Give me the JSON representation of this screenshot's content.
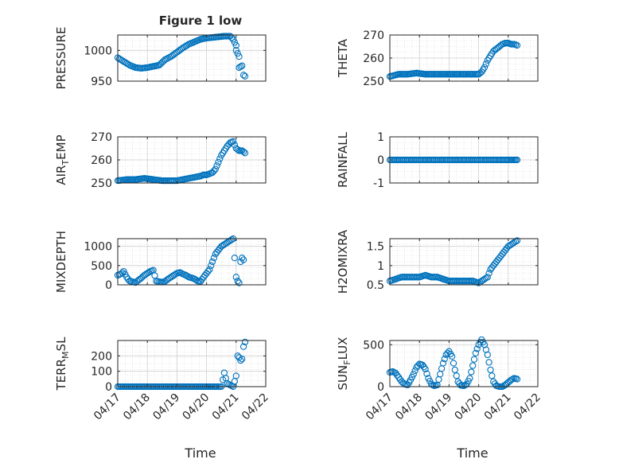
{
  "figure_title": "Figure 1 low",
  "x_axis_label": "Time",
  "x_tick_labels": [
    "04/17",
    "04/18",
    "04/19",
    "04/20",
    "04/21",
    "04/22"
  ],
  "marker_color": "#0072BD",
  "chart_data": [
    {
      "type": "scatter",
      "ylabel": "PRESSURE",
      "ylim": [
        950,
        1025
      ],
      "yticks": [
        950,
        1000
      ],
      "xlim": [
        "04/17",
        "04/22"
      ],
      "grid": true,
      "x": [
        0.0,
        0.2,
        0.4,
        0.6,
        0.8,
        1.0,
        1.2,
        1.4,
        1.6,
        1.8,
        2.0,
        2.2,
        2.4,
        2.6,
        2.8,
        3.0,
        3.2,
        3.4,
        3.6,
        3.8,
        3.9,
        4.0,
        4.0,
        4.1,
        4.1,
        4.2,
        4.25,
        4.3
      ],
      "y": [
        988,
        982,
        976,
        972,
        971,
        972,
        974,
        976,
        985,
        990,
        997,
        1004,
        1010,
        1014,
        1018,
        1020,
        1021,
        1022,
        1023,
        1023,
        1018,
        1008,
        1000,
        990,
        972,
        975,
        960,
        958
      ]
    },
    {
      "type": "scatter",
      "ylabel": "THETA",
      "ylim": [
        250,
        270
      ],
      "yticks": [
        250,
        260,
        270
      ],
      "xlim": [
        "04/17",
        "04/22"
      ],
      "grid": true,
      "x": [
        0.0,
        0.3,
        0.6,
        0.9,
        1.2,
        1.5,
        1.8,
        2.1,
        2.4,
        2.7,
        3.0,
        3.1,
        3.2,
        3.3,
        3.4,
        3.5,
        3.6,
        3.7,
        3.8,
        3.9,
        4.0,
        4.1,
        4.2,
        4.3
      ],
      "y": [
        252,
        253,
        253,
        253.5,
        253,
        253,
        253,
        253,
        253,
        253,
        253,
        254,
        256,
        259,
        261,
        263,
        264,
        265,
        266,
        266.5,
        266.5,
        266,
        266,
        265.5
      ]
    },
    {
      "type": "scatter",
      "ylabel": "AIR_TEMP",
      "ylim": [
        250,
        270
      ],
      "yticks": [
        250,
        260,
        270
      ],
      "xlim": [
        "04/17",
        "04/22"
      ],
      "grid": true,
      "x": [
        0.0,
        0.3,
        0.6,
        0.9,
        1.2,
        1.5,
        1.8,
        2.0,
        2.2,
        2.4,
        2.6,
        2.8,
        2.9,
        3.0,
        3.1,
        3.2,
        3.3,
        3.4,
        3.5,
        3.6,
        3.7,
        3.8,
        3.9,
        4.0,
        4.1,
        4.2,
        4.3
      ],
      "y": [
        251,
        251.5,
        251.5,
        252,
        251.5,
        251,
        251,
        251,
        251.5,
        252,
        252.5,
        253,
        253.5,
        253.5,
        254,
        254.5,
        256,
        259,
        262,
        264,
        266,
        267.5,
        268,
        265,
        264,
        264,
        263
      ]
    },
    {
      "type": "scatter",
      "ylabel": "RAINFALL",
      "ylim": [
        -1,
        1
      ],
      "yticks": [
        -1,
        0,
        1
      ],
      "xlim": [
        "04/17",
        "04/22"
      ],
      "grid": true,
      "x": [
        0.0,
        0.5,
        1.0,
        1.5,
        2.0,
        2.5,
        3.0,
        3.5,
        4.0,
        4.3
      ],
      "y": [
        0,
        0,
        0,
        0,
        0,
        0,
        0,
        0,
        0,
        0
      ]
    },
    {
      "type": "scatter",
      "ylabel": "MIXDEPTH",
      "ylim": [
        0,
        1200
      ],
      "yticks": [
        0,
        500,
        1000
      ],
      "xlim": [
        "04/17",
        "04/22"
      ],
      "grid": true,
      "x": [
        0.0,
        0.1,
        0.2,
        0.3,
        0.4,
        0.5,
        0.6,
        0.7,
        0.8,
        0.9,
        1.0,
        1.1,
        1.2,
        1.3,
        1.4,
        1.5,
        1.6,
        1.7,
        1.8,
        1.9,
        2.0,
        2.1,
        2.2,
        2.3,
        2.4,
        2.5,
        2.6,
        2.7,
        2.8,
        2.9,
        3.0,
        3.1,
        3.2,
        3.3,
        3.4,
        3.5,
        3.6,
        3.7,
        3.8,
        3.9,
        4.0,
        4.05,
        4.1,
        4.15,
        4.2,
        4.25
      ],
      "y": [
        250,
        280,
        350,
        200,
        100,
        80,
        60,
        120,
        180,
        250,
        300,
        350,
        380,
        100,
        80,
        70,
        90,
        150,
        200,
        250,
        300,
        320,
        280,
        250,
        200,
        180,
        150,
        100,
        90,
        200,
        300,
        400,
        600,
        800,
        900,
        1000,
        1050,
        1100,
        1150,
        1200,
        200,
        100,
        50,
        600,
        700,
        650
      ]
    },
    {
      "type": "scatter",
      "ylabel": "H2OMIXRA",
      "ylim": [
        0.5,
        1.7
      ],
      "yticks": [
        0.5,
        1,
        1.5
      ],
      "xlim": [
        "04/17",
        "04/22"
      ],
      "grid": true,
      "x": [
        0.0,
        0.2,
        0.4,
        0.6,
        0.8,
        1.0,
        1.2,
        1.4,
        1.6,
        1.8,
        2.0,
        2.2,
        2.4,
        2.6,
        2.8,
        3.0,
        3.1,
        3.2,
        3.3,
        3.4,
        3.5,
        3.6,
        3.7,
        3.8,
        3.9,
        4.0,
        4.1,
        4.2,
        4.3
      ],
      "y": [
        0.6,
        0.65,
        0.7,
        0.7,
        0.7,
        0.7,
        0.75,
        0.7,
        0.7,
        0.65,
        0.6,
        0.6,
        0.6,
        0.6,
        0.6,
        0.55,
        0.6,
        0.65,
        0.7,
        0.9,
        1.0,
        1.1,
        1.2,
        1.3,
        1.4,
        1.5,
        1.55,
        1.6,
        1.65
      ]
    },
    {
      "type": "scatter",
      "ylabel": "TERR_MSL",
      "ylim": [
        0,
        300
      ],
      "yticks": [
        0,
        100,
        200
      ],
      "xlim": [
        "04/17",
        "04/22"
      ],
      "grid": true,
      "x": [
        0.0,
        0.5,
        1.0,
        1.5,
        2.0,
        2.5,
        3.0,
        3.3,
        3.5,
        3.6,
        3.7,
        3.9,
        4.0,
        4.05,
        4.1,
        4.15,
        4.2,
        4.25,
        4.3
      ],
      "y": [
        0,
        0,
        0,
        0,
        0,
        0,
        0,
        0,
        0,
        90,
        20,
        0,
        70,
        200,
        190,
        170,
        180,
        260,
        290
      ]
    },
    {
      "type": "scatter",
      "ylabel": "SUN_FLUX",
      "ylim": [
        0,
        550
      ],
      "yticks": [
        0,
        500
      ],
      "xlim": [
        "04/17",
        "04/22"
      ],
      "grid": true,
      "x": [
        0.0,
        0.1,
        0.2,
        0.3,
        0.4,
        0.5,
        0.6,
        0.7,
        0.8,
        0.9,
        1.0,
        1.1,
        1.2,
        1.3,
        1.4,
        1.5,
        1.6,
        1.7,
        1.8,
        1.9,
        2.0,
        2.1,
        2.2,
        2.3,
        2.4,
        2.5,
        2.6,
        2.7,
        2.8,
        2.9,
        3.0,
        3.1,
        3.2,
        3.3,
        3.4,
        3.5,
        3.6,
        3.7,
        3.8,
        3.9,
        4.0,
        4.1,
        4.2,
        4.3
      ],
      "y": [
        170,
        180,
        160,
        110,
        60,
        30,
        20,
        80,
        150,
        230,
        270,
        260,
        210,
        100,
        30,
        10,
        20,
        150,
        280,
        380,
        420,
        360,
        200,
        60,
        15,
        10,
        30,
        100,
        250,
        400,
        500,
        560,
        500,
        380,
        200,
        60,
        10,
        0,
        0,
        20,
        50,
        80,
        100,
        90
      ]
    }
  ]
}
